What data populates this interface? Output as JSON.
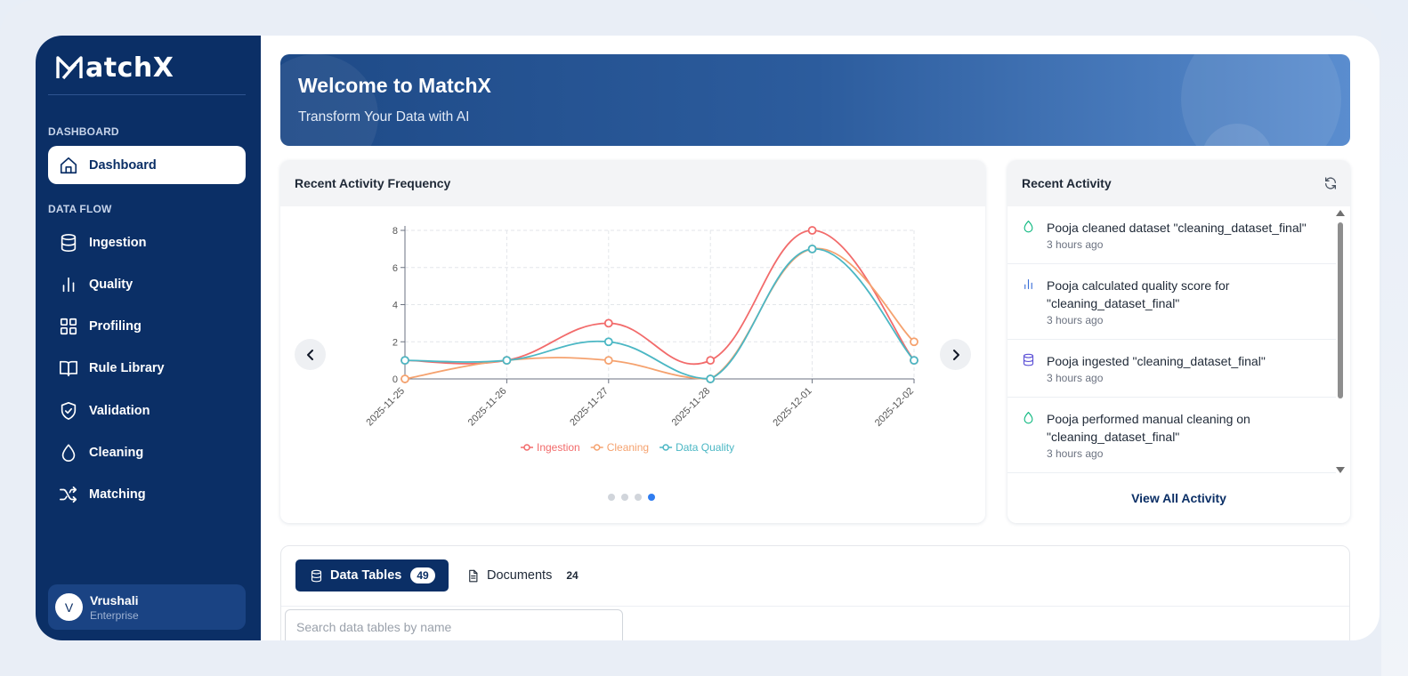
{
  "brand": {
    "name": "MatchX"
  },
  "sidebar": {
    "sections": [
      {
        "label": "DASHBOARD"
      },
      {
        "label": "DATA FLOW"
      }
    ],
    "items": [
      {
        "label": "Dashboard",
        "icon": "home-icon",
        "active": true
      },
      {
        "label": "Ingestion",
        "icon": "database-icon"
      },
      {
        "label": "Quality",
        "icon": "bar-chart-icon"
      },
      {
        "label": "Profiling",
        "icon": "grid-icon"
      },
      {
        "label": "Rule Library",
        "icon": "book-open-icon"
      },
      {
        "label": "Validation",
        "icon": "shield-check-icon"
      },
      {
        "label": "Cleaning",
        "icon": "droplet-icon"
      },
      {
        "label": "Matching",
        "icon": "shuffle-icon"
      }
    ],
    "user": {
      "initial": "V",
      "name": "Vrushali",
      "plan": "Enterprise"
    }
  },
  "banner": {
    "title": "Welcome to MatchX",
    "subtitle": "Transform Your Data with AI"
  },
  "chart_card": {
    "title": "Recent Activity Frequency",
    "carousel": {
      "pages": 4,
      "active_page": 4
    }
  },
  "chart_data": {
    "type": "line",
    "categories": [
      "2025-11-25",
      "2025-11-26",
      "2025-11-27",
      "2025-11-28",
      "2025-12-01",
      "2025-12-02"
    ],
    "series": [
      {
        "name": "Ingestion",
        "values": [
          1,
          1,
          3,
          1,
          8,
          1
        ],
        "color": "#f26b6b"
      },
      {
        "name": "Cleaning",
        "values": [
          0,
          1,
          1,
          0,
          7,
          2
        ],
        "color": "#f5a26f"
      },
      {
        "name": "Data Quality",
        "values": [
          1,
          1,
          2,
          0,
          7,
          1
        ],
        "color": "#4bb7c4"
      }
    ],
    "ylim": [
      0,
      8
    ],
    "yticks": [
      "0",
      "2",
      "4",
      "6",
      "8"
    ],
    "grid": true,
    "smooth": true,
    "legend": "bottom",
    "xlabel": "",
    "ylabel": ""
  },
  "activity": {
    "title": "Recent Activity",
    "items": [
      {
        "icon": "droplet-icon",
        "color": "#10b981",
        "text": "Pooja cleaned dataset \"cleaning_dataset_final\"",
        "time": "3 hours ago"
      },
      {
        "icon": "bar-chart-icon",
        "color": "#3b6fd8",
        "text": "Pooja calculated quality score for \"cleaning_dataset_final\"",
        "time": "3 hours ago"
      },
      {
        "icon": "database-icon",
        "color": "#5b4fd6",
        "text": "Pooja ingested \"cleaning_dataset_final\"",
        "time": "3 hours ago"
      },
      {
        "icon": "droplet-icon",
        "color": "#10b981",
        "text": "Pooja performed manual cleaning on \"cleaning_dataset_final\"",
        "time": "3 hours ago"
      }
    ],
    "view_all": "View All Activity"
  },
  "tables": {
    "tabs": [
      {
        "label": "Data Tables",
        "count": "49",
        "active": true
      },
      {
        "label": "Documents",
        "count": "24"
      }
    ],
    "search_placeholder": "Search data tables by name"
  }
}
